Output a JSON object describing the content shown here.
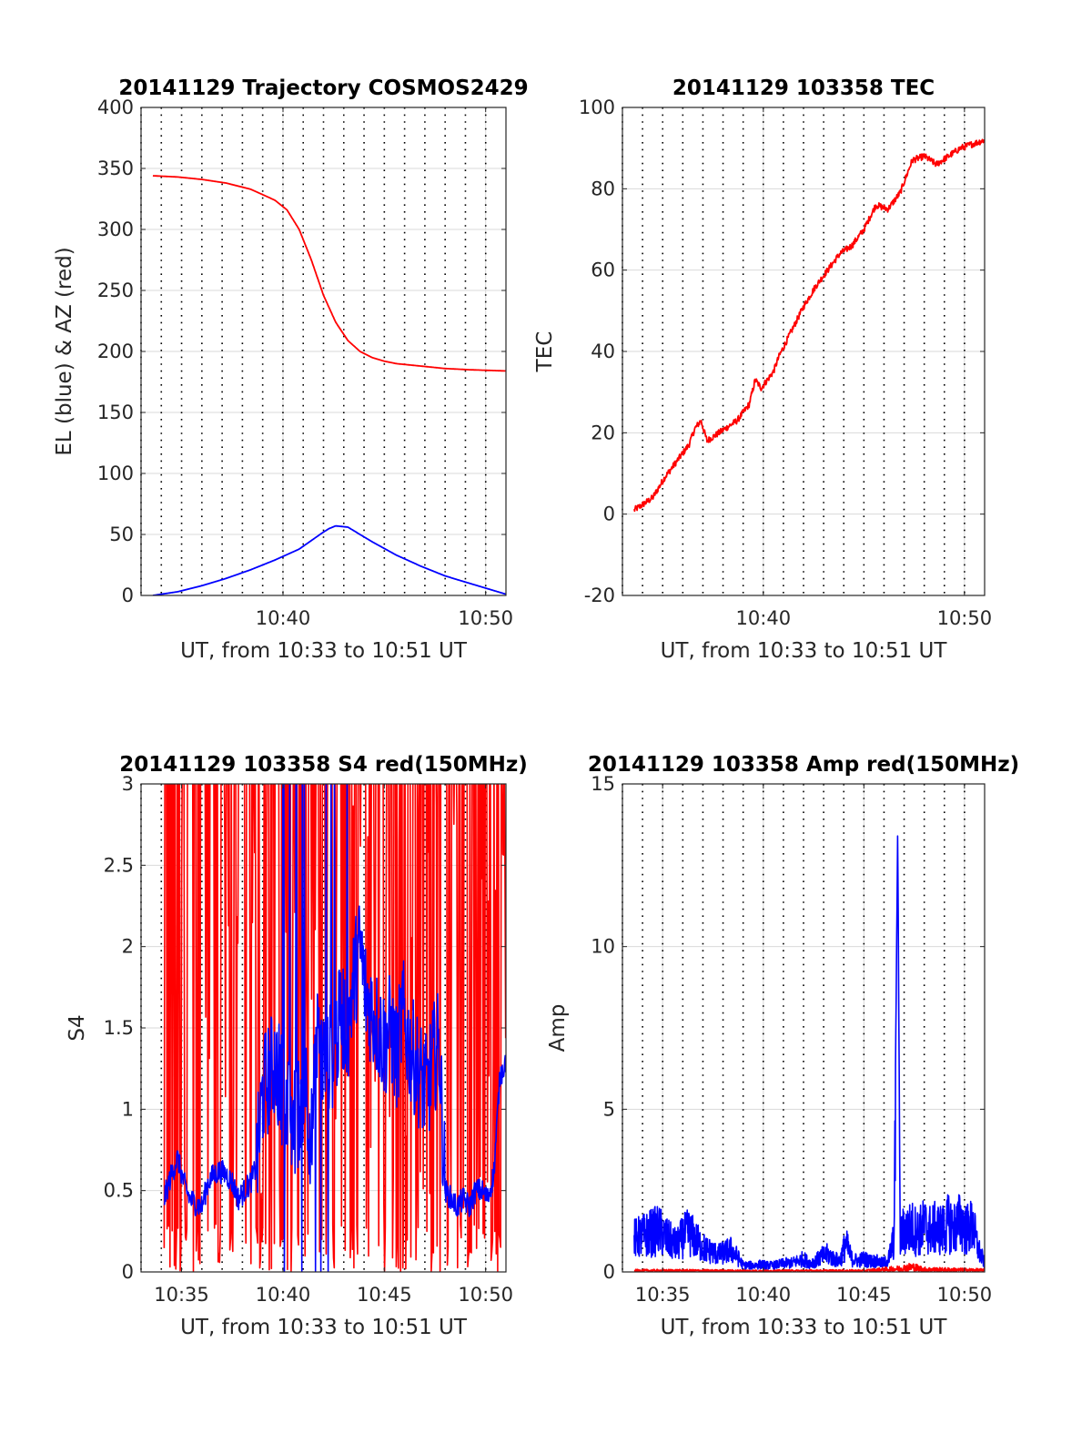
{
  "colors": {
    "el": "#0000ff",
    "az": "#ff0000",
    "tec": "#ff0000",
    "red_series": "#ff0000",
    "blue_series": "#0000ff",
    "grid": "#d9d9d9"
  },
  "chart_data": [
    {
      "type": "line",
      "title": "20141129 Trajectory COSMOS2429",
      "xlabel": "UT, from 10:33 to 10:51 UT",
      "ylabel": "EL (blue) & AZ (red)",
      "xlim": [
        10.55,
        10.85
      ],
      "x_tick_values": [
        10.6667,
        10.8333
      ],
      "x_tick_labels": [
        "10:40",
        "10:50"
      ],
      "ylim": [
        0,
        400
      ],
      "y_ticks": [
        0,
        50,
        100,
        150,
        200,
        250,
        300,
        350,
        400
      ],
      "grid": true,
      "series": [
        {
          "color": "#0000ff",
          "x": [
            10.5597,
            10.58,
            10.6,
            10.62,
            10.64,
            10.66,
            10.68,
            10.69,
            10.7,
            10.705,
            10.71,
            10.72,
            10.73,
            10.74,
            10.76,
            10.78,
            10.8,
            10.82,
            10.84,
            10.85
          ],
          "y": [
            0,
            3,
            8,
            14,
            21,
            29,
            38,
            45,
            52,
            55,
            57,
            56,
            50,
            44,
            33,
            24,
            16,
            10,
            4,
            1
          ]
        },
        {
          "color": "#ff0000",
          "x": [
            10.5597,
            10.58,
            10.6,
            10.62,
            10.64,
            10.66,
            10.67,
            10.68,
            10.69,
            10.7,
            10.71,
            10.72,
            10.73,
            10.74,
            10.75,
            10.76,
            10.78,
            10.8,
            10.82,
            10.85
          ],
          "y": [
            344,
            343,
            341,
            338,
            333,
            324,
            316,
            300,
            275,
            246,
            224,
            209,
            200,
            195,
            192,
            190,
            188,
            186,
            185,
            184
          ]
        }
      ]
    },
    {
      "type": "line",
      "title": "20141129 103358 TEC",
      "xlabel": "UT, from 10:33 to 10:51 UT",
      "ylabel": "TEC",
      "xlim": [
        10.55,
        10.85
      ],
      "x_tick_values": [
        10.6667,
        10.8333
      ],
      "x_tick_labels": [
        "10:40",
        "10:50"
      ],
      "ylim": [
        -20,
        100
      ],
      "y_ticks": [
        -20,
        0,
        20,
        40,
        60,
        80,
        100
      ],
      "grid": true,
      "series": [
        {
          "color": "#ff0000",
          "x": [
            10.5597,
            10.565,
            10.57,
            10.575,
            10.585,
            10.595,
            10.605,
            10.61,
            10.615,
            10.62,
            10.625,
            10.635,
            10.645,
            10.655,
            10.66,
            10.665,
            10.675,
            10.68,
            10.685,
            10.695,
            10.7,
            10.71,
            10.72,
            10.725,
            10.73,
            10.74,
            10.75,
            10.76,
            10.77,
            10.78,
            10.79,
            10.8,
            10.81,
            10.82,
            10.83,
            10.84,
            10.85
          ],
          "y": [
            1,
            2,
            3,
            4,
            9,
            13,
            17,
            21,
            23,
            18,
            19,
            21,
            23,
            27,
            33,
            31,
            35,
            39,
            42,
            48,
            51,
            56,
            60,
            62,
            64,
            66,
            70,
            76,
            75,
            79,
            87,
            88,
            86,
            88,
            90,
            91,
            92
          ]
        }
      ]
    },
    {
      "type": "line",
      "title": "20141129 103358 S4 red(150MHz)",
      "xlabel": "UT, from 10:33 to 10:51 UT",
      "ylabel": "S4",
      "xlim": [
        10.55,
        10.85
      ],
      "x_tick_values": [
        10.5833,
        10.6667,
        10.75,
        10.8333
      ],
      "x_tick_labels": [
        "10:35",
        "10:40",
        "10:45",
        "10:50"
      ],
      "ylim": [
        0,
        3
      ],
      "y_ticks": [
        0,
        0.5,
        1,
        1.5,
        2,
        2.5,
        3
      ],
      "grid": true,
      "series": [
        {
          "color": "#ff0000",
          "style": "noisy-saturated",
          "x_start": 10.569,
          "x_end": 10.85
        },
        {
          "color": "#0000ff",
          "x": [
            10.569,
            10.575,
            10.58,
            10.585,
            10.59,
            10.595,
            10.6,
            10.605,
            10.61,
            10.615,
            10.62,
            10.625,
            10.63,
            10.635,
            10.64,
            10.645,
            10.65,
            10.655,
            10.66,
            10.665,
            10.67,
            10.675,
            10.68,
            10.685,
            10.69,
            10.695,
            10.7,
            10.705,
            10.71,
            10.715,
            10.72,
            10.725,
            10.73,
            10.735,
            10.74,
            10.745,
            10.75,
            10.755,
            10.76,
            10.765,
            10.77,
            10.775,
            10.78,
            10.785,
            10.79,
            10.795,
            10.8,
            10.805,
            10.81,
            10.815,
            10.82,
            10.825,
            10.83,
            10.835,
            10.84,
            10.845,
            10.85
          ],
          "y": [
            0.45,
            0.6,
            0.7,
            0.55,
            0.45,
            0.42,
            0.4,
            0.55,
            0.6,
            0.62,
            0.6,
            0.55,
            0.45,
            0.5,
            0.55,
            0.65,
            1.1,
            1.2,
            1.3,
            1.15,
            1.0,
            0.9,
            1.0,
            1.2,
            0.8,
            1.4,
            1.3,
            1.3,
            1.4,
            1.6,
            1.5,
            1.8,
            2.0,
            1.7,
            1.6,
            1.5,
            1.4,
            1.5,
            1.3,
            1.6,
            1.4,
            1.3,
            1.2,
            1.1,
            1.3,
            1.4,
            0.5,
            0.45,
            0.4,
            0.45,
            0.4,
            0.5,
            0.5,
            0.45,
            0.6,
            1.2,
            1.3
          ]
        }
      ]
    },
    {
      "type": "line",
      "title": "20141129 103358 Amp red(150MHz)",
      "xlabel": "UT, from 10:33 to 10:51 UT",
      "ylabel": "Amp",
      "xlim": [
        10.55,
        10.85
      ],
      "x_tick_values": [
        10.5833,
        10.6667,
        10.75,
        10.8333
      ],
      "x_tick_labels": [
        "10:35",
        "10:40",
        "10:45",
        "10:50"
      ],
      "ylim": [
        0,
        15
      ],
      "y_ticks": [
        0,
        5,
        10,
        15
      ],
      "grid": true,
      "series": [
        {
          "color": "#0000ff",
          "x": [
            10.5597,
            10.565,
            10.57,
            10.575,
            10.58,
            10.585,
            10.59,
            10.595,
            10.6,
            10.605,
            10.61,
            10.615,
            10.62,
            10.625,
            10.63,
            10.635,
            10.64,
            10.645,
            10.65,
            10.655,
            10.66,
            10.665,
            10.67,
            10.675,
            10.68,
            10.685,
            10.69,
            10.695,
            10.7,
            10.705,
            10.71,
            10.715,
            10.72,
            10.725,
            10.73,
            10.735,
            10.74,
            10.745,
            10.75,
            10.755,
            10.76,
            10.765,
            10.77,
            10.775,
            10.778,
            10.78,
            10.782,
            10.785,
            10.79,
            10.795,
            10.8,
            10.805,
            10.81,
            10.815,
            10.82,
            10.825,
            10.83,
            10.835,
            10.84,
            10.845,
            10.85
          ],
          "y": [
            1.5,
            1.6,
            1.7,
            1.8,
            1.9,
            1.6,
            1.4,
            1.2,
            1.6,
            1.8,
            1.5,
            1.2,
            1.0,
            0.9,
            0.8,
            0.9,
            1.0,
            0.7,
            0.3,
            0.3,
            0.3,
            0.35,
            0.3,
            0.3,
            0.35,
            0.4,
            0.4,
            0.5,
            0.6,
            0.4,
            0.5,
            0.7,
            0.8,
            0.6,
            0.5,
            1.3,
            0.6,
            0.5,
            0.6,
            0.5,
            0.5,
            0.4,
            0.5,
            1.5,
            13.6,
            1.5,
            1.8,
            1.9,
            2.0,
            1.8,
            2.1,
            1.9,
            2.0,
            1.9,
            2.2,
            2.0,
            2.3,
            1.9,
            2.1,
            1.0,
            0.4
          ]
        },
        {
          "color": "#ff0000",
          "x": [
            10.5597,
            10.6,
            10.6667,
            10.7,
            10.75,
            10.78,
            10.79,
            10.8,
            10.85
          ],
          "y": [
            0.08,
            0.08,
            0.06,
            0.07,
            0.07,
            0.2,
            0.3,
            0.15,
            0.1
          ]
        }
      ]
    }
  ]
}
